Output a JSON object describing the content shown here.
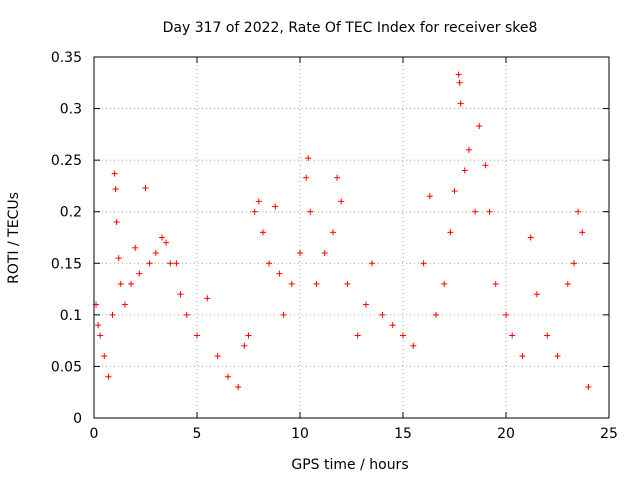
{
  "chart_data": {
    "type": "scatter",
    "title": "Day 317 of 2022, Rate Of TEC Index for receiver ske8",
    "xlabel": "GPS time / hours",
    "ylabel": "ROTI / TECUs",
    "xlim": [
      0,
      25
    ],
    "ylim": [
      0,
      0.35
    ],
    "x_ticks": [
      "0",
      "5",
      "10",
      "15",
      "20",
      "25"
    ],
    "y_ticks": [
      "0",
      "0.05",
      "0.1",
      "0.15",
      "0.2",
      "0.25",
      "0.3",
      "0.35"
    ],
    "grid": true,
    "marker": "+",
    "colors": {
      "series": "#ff0000",
      "axes": "#000000",
      "grid": "#a0a0a0"
    },
    "series": [
      {
        "points": [
          [
            0.1,
            0.11
          ],
          [
            0.2,
            0.09
          ],
          [
            0.3,
            0.08
          ],
          [
            0.5,
            0.06
          ],
          [
            0.7,
            0.04
          ],
          [
            0.9,
            0.1
          ],
          [
            1.0,
            0.237
          ],
          [
            1.05,
            0.222
          ],
          [
            1.1,
            0.19
          ],
          [
            1.2,
            0.155
          ],
          [
            1.3,
            0.13
          ],
          [
            1.5,
            0.11
          ],
          [
            1.8,
            0.13
          ],
          [
            2.0,
            0.165
          ],
          [
            2.2,
            0.14
          ],
          [
            2.5,
            0.223
          ],
          [
            2.7,
            0.15
          ],
          [
            3.0,
            0.16
          ],
          [
            3.3,
            0.175
          ],
          [
            3.5,
            0.17
          ],
          [
            3.7,
            0.15
          ],
          [
            4.0,
            0.15
          ],
          [
            4.2,
            0.12
          ],
          [
            4.5,
            0.1
          ],
          [
            5.0,
            0.08
          ],
          [
            5.5,
            0.116
          ],
          [
            6.0,
            0.06
          ],
          [
            6.5,
            0.04
          ],
          [
            7.0,
            0.03
          ],
          [
            7.3,
            0.07
          ],
          [
            7.5,
            0.08
          ],
          [
            7.8,
            0.2
          ],
          [
            8.0,
            0.21
          ],
          [
            8.2,
            0.18
          ],
          [
            8.5,
            0.15
          ],
          [
            8.8,
            0.205
          ],
          [
            9.0,
            0.14
          ],
          [
            9.2,
            0.1
          ],
          [
            9.6,
            0.13
          ],
          [
            10.0,
            0.16
          ],
          [
            10.3,
            0.233
          ],
          [
            10.4,
            0.252
          ],
          [
            10.5,
            0.2
          ],
          [
            10.8,
            0.13
          ],
          [
            11.2,
            0.16
          ],
          [
            11.6,
            0.18
          ],
          [
            11.8,
            0.233
          ],
          [
            12.0,
            0.21
          ],
          [
            12.3,
            0.13
          ],
          [
            12.8,
            0.08
          ],
          [
            13.2,
            0.11
          ],
          [
            13.5,
            0.15
          ],
          [
            14.0,
            0.1
          ],
          [
            14.5,
            0.09
          ],
          [
            15.0,
            0.08
          ],
          [
            15.5,
            0.07
          ],
          [
            16.0,
            0.15
          ],
          [
            16.3,
            0.215
          ],
          [
            16.6,
            0.1
          ],
          [
            17.0,
            0.13
          ],
          [
            17.3,
            0.18
          ],
          [
            17.5,
            0.22
          ],
          [
            17.7,
            0.333
          ],
          [
            17.75,
            0.325
          ],
          [
            17.8,
            0.305
          ],
          [
            18.0,
            0.24
          ],
          [
            18.2,
            0.26
          ],
          [
            18.5,
            0.2
          ],
          [
            18.7,
            0.283
          ],
          [
            19.0,
            0.245
          ],
          [
            19.2,
            0.2
          ],
          [
            19.5,
            0.13
          ],
          [
            20.0,
            0.1
          ],
          [
            20.3,
            0.08
          ],
          [
            20.8,
            0.06
          ],
          [
            21.2,
            0.175
          ],
          [
            21.5,
            0.12
          ],
          [
            22.0,
            0.08
          ],
          [
            22.5,
            0.06
          ],
          [
            23.0,
            0.13
          ],
          [
            23.3,
            0.15
          ],
          [
            23.5,
            0.2
          ],
          [
            23.7,
            0.18
          ],
          [
            24.0,
            0.03
          ]
        ]
      }
    ]
  }
}
